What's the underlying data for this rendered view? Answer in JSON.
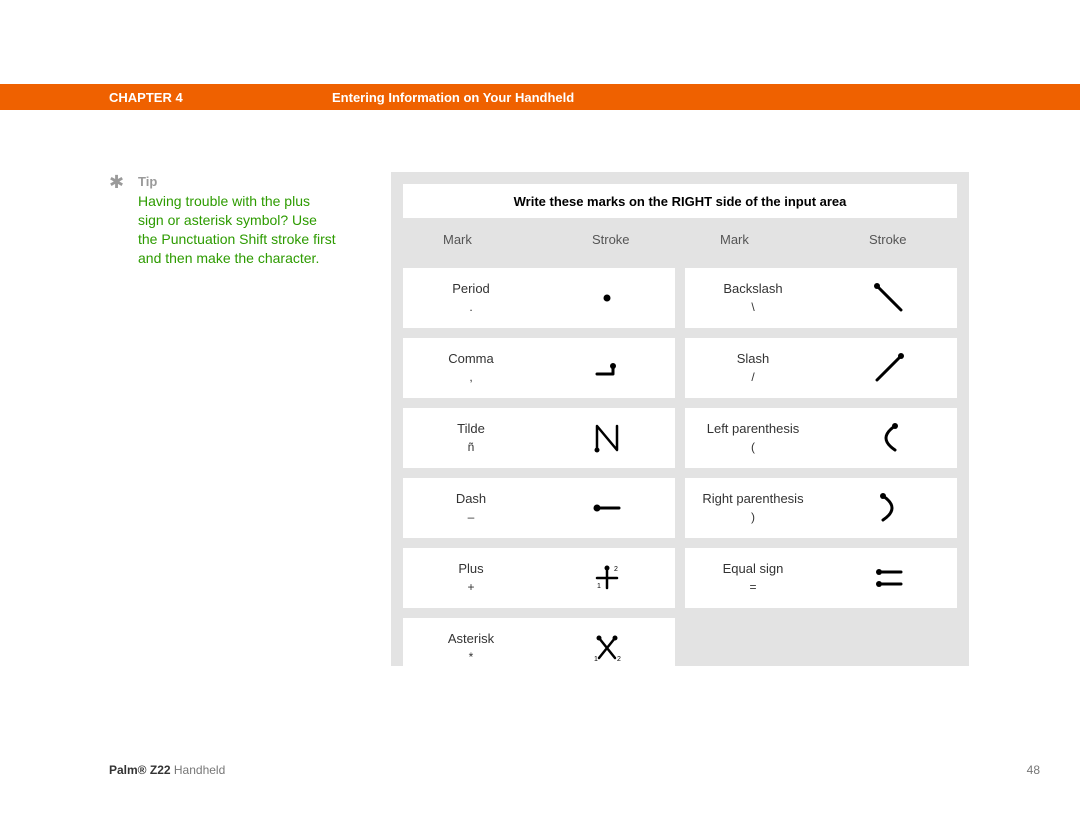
{
  "header": {
    "chapter": "CHAPTER 4",
    "topic": "Entering Information on Your Handheld",
    "bar_color": "#ef6100",
    "text_color": "#ffffff"
  },
  "tip": {
    "label": "Tip",
    "icon_glyph": "✱",
    "text": "Having trouble with the plus sign or asterisk symbol? Use the Punctuation Shift stroke first and then make the character.",
    "label_color": "#9a9a9a",
    "text_color": "#2d9b00"
  },
  "panel": {
    "title": "Write these marks on the RIGHT side of the input area",
    "background_color": "#e3e3e3",
    "cell_background": "#ffffff",
    "columns": {
      "mark": "Mark",
      "stroke": "Stroke"
    },
    "stroke_color": "#000000",
    "rows": [
      {
        "left": {
          "name": "Period",
          "symbol": ".",
          "stroke": "period"
        },
        "right": {
          "name": "Backslash",
          "symbol": "\\",
          "stroke": "backslash"
        }
      },
      {
        "left": {
          "name": "Comma",
          "symbol": ",",
          "stroke": "comma"
        },
        "right": {
          "name": "Slash",
          "symbol": "/",
          "stroke": "slash"
        }
      },
      {
        "left": {
          "name": "Tilde",
          "symbol": "ñ",
          "stroke": "tilde"
        },
        "right": {
          "name": "Left parenthesis",
          "symbol": "(",
          "stroke": "leftparen"
        }
      },
      {
        "left": {
          "name": "Dash",
          "symbol": "–",
          "stroke": "dash"
        },
        "right": {
          "name": "Right parenthesis",
          "symbol": ")",
          "stroke": "rightparen"
        }
      },
      {
        "left": {
          "name": "Plus",
          "symbol": "+",
          "stroke": "plus"
        },
        "right": {
          "name": "Equal sign",
          "symbol": "=",
          "stroke": "equal"
        }
      },
      {
        "left": {
          "name": "Asterisk",
          "symbol": "*",
          "stroke": "asterisk"
        },
        "right": null
      }
    ]
  },
  "footer": {
    "device_prefix": "Palm® Z22",
    "device_suffix": " Handheld",
    "page_number": "48"
  }
}
